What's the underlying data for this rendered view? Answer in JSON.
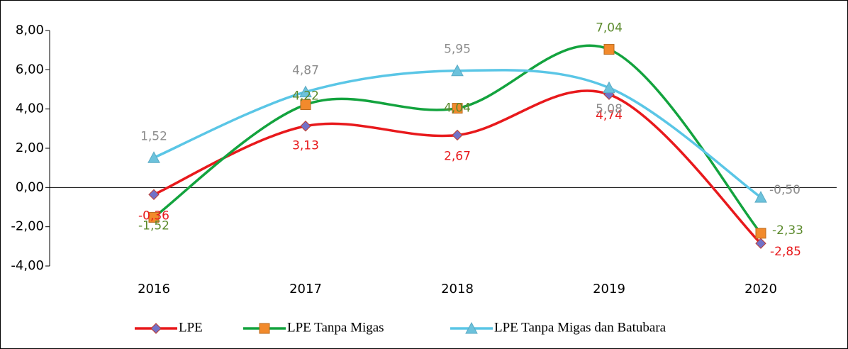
{
  "chart_data": {
    "type": "line",
    "categories": [
      "2016",
      "2017",
      "2018",
      "2019",
      "2020"
    ],
    "series": [
      {
        "name": "LPE",
        "color": "#e8191c",
        "marker": "diamond",
        "marker_color": "#7272c8",
        "label_color": "#e8191c",
        "values": [
          -0.36,
          3.13,
          2.67,
          4.74,
          -2.85
        ],
        "value_labels": [
          "-0,36",
          "3,13",
          "2,67",
          "4,74",
          "-2,85"
        ]
      },
      {
        "name": "LPE Tanpa Migas",
        "color": "#13a33e",
        "marker": "square",
        "marker_color": "#f28a2c",
        "label_color": "#5b8a2c",
        "values": [
          -1.52,
          4.22,
          4.04,
          7.04,
          -2.33
        ],
        "value_labels": [
          "-1,52",
          "4,22",
          "4,04",
          "7,04",
          "-2,33"
        ]
      },
      {
        "name": "LPE Tanpa Migas dan Batubara",
        "color": "#5ac6e6",
        "marker": "triangle",
        "marker_color": "#6cc2dc",
        "label_color": "#8c8c8c",
        "values": [
          1.52,
          4.87,
          5.95,
          5.08,
          -0.5
        ],
        "value_labels": [
          "1,52",
          "4,87",
          "5,95",
          "5,08",
          "-0,50"
        ]
      }
    ],
    "ylim": [
      -4,
      8
    ],
    "yticks": [
      {
        "value": -4,
        "label": "-4,00"
      },
      {
        "value": -2,
        "label": "-2,00"
      },
      {
        "value": 0,
        "label": "0,00"
      },
      {
        "value": 2,
        "label": "2,00"
      },
      {
        "value": 4,
        "label": "4,00"
      },
      {
        "value": 6,
        "label": "6,00"
      },
      {
        "value": 8,
        "label": "8,00"
      }
    ],
    "smooth": true,
    "legend": "bottom"
  }
}
